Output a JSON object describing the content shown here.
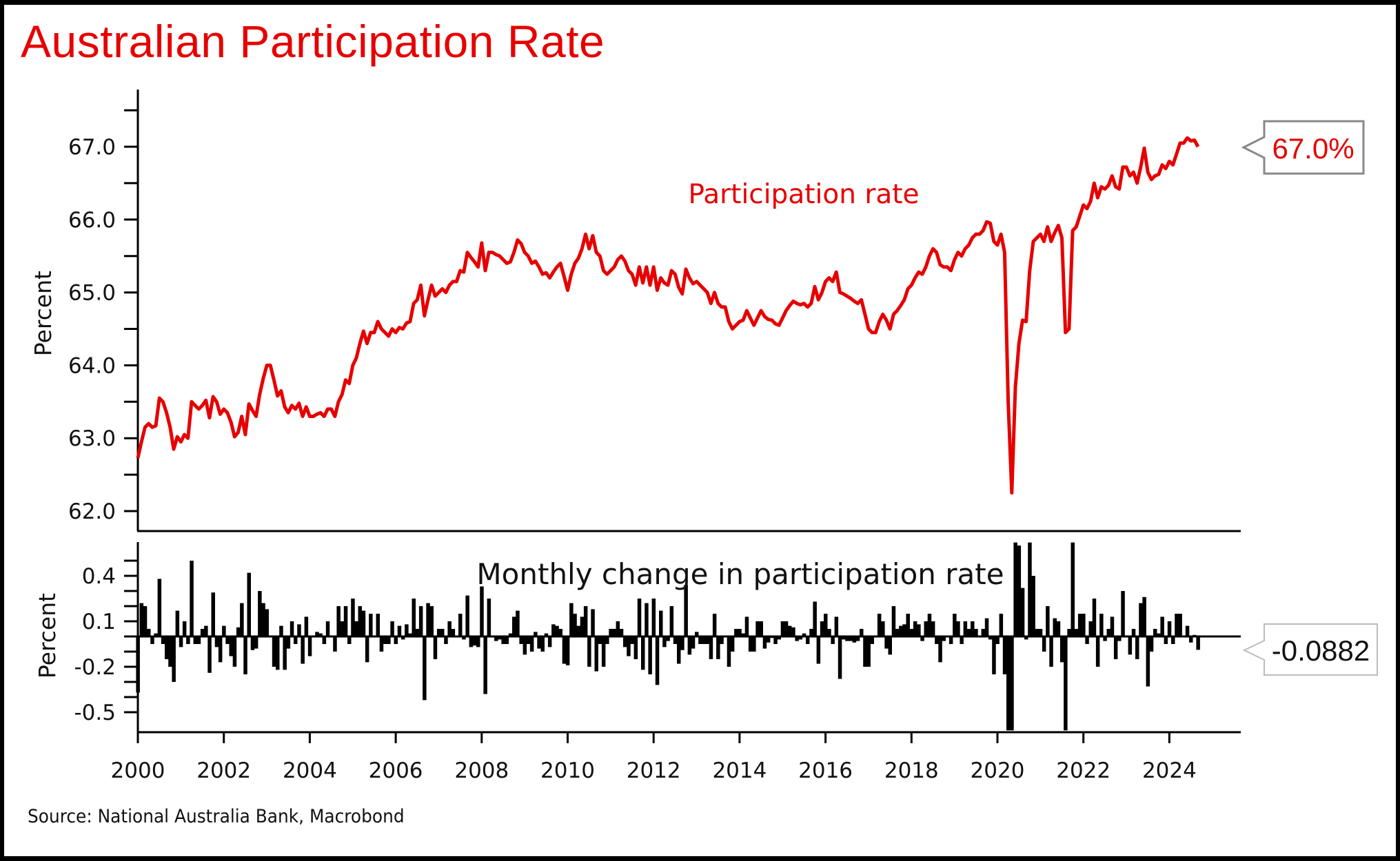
{
  "title": "Australian Participation Rate",
  "source": "Source: National Australia Bank, Macrobond",
  "colors": {
    "title": "#e60000",
    "line": "#e60000",
    "bars": "#000000",
    "callout_border": "#888888"
  },
  "chart_data": [
    {
      "type": "line",
      "title": "Participation rate",
      "ylabel": "Percent",
      "xlabel": "",
      "frequency": "monthly",
      "x_start": "2000-01",
      "ylim": [
        61.8,
        67.8
      ],
      "xlim": [
        2000,
        2025.8
      ],
      "yticks": [
        62.0,
        63.0,
        64.0,
        65.0,
        66.0,
        67.0
      ],
      "ytick_labels": [
        "62.0",
        "63.0",
        "64.0",
        "65.0",
        "66.0",
        "67.0"
      ],
      "yminor_step": 0.5,
      "grid": false,
      "series": [
        {
          "name": "Participation rate",
          "color": "#e60000",
          "values": [
            62.73,
            62.95,
            63.15,
            63.2,
            63.15,
            63.17,
            63.55,
            63.5,
            63.35,
            63.15,
            62.85,
            63.02,
            62.95,
            63.05,
            63.0,
            63.5,
            63.45,
            63.4,
            63.45,
            63.52,
            63.28,
            63.57,
            63.5,
            63.33,
            63.4,
            63.35,
            63.22,
            63.02,
            63.08,
            63.3,
            63.05,
            63.47,
            63.38,
            63.3,
            63.6,
            63.82,
            64.0,
            64.0,
            63.8,
            63.58,
            63.65,
            63.43,
            63.35,
            63.45,
            63.4,
            63.48,
            63.3,
            63.43,
            63.3,
            63.3,
            63.33,
            63.35,
            63.3,
            63.4,
            63.4,
            63.3,
            63.5,
            63.6,
            63.8,
            63.75,
            64.0,
            64.1,
            64.3,
            64.47,
            64.3,
            64.45,
            64.45,
            64.6,
            64.5,
            64.45,
            64.4,
            64.5,
            64.45,
            64.52,
            64.5,
            64.58,
            64.6,
            64.85,
            64.9,
            65.1,
            64.68,
            64.9,
            65.1,
            64.95,
            65.0,
            65.05,
            65.0,
            65.1,
            65.15,
            65.15,
            65.3,
            65.28,
            65.55,
            65.48,
            65.42,
            65.35,
            65.68,
            65.3,
            65.55,
            65.55,
            65.52,
            65.5,
            65.45,
            65.4,
            65.42,
            65.55,
            65.72,
            65.67,
            65.55,
            65.5,
            65.4,
            65.43,
            65.35,
            65.25,
            65.27,
            65.2,
            65.28,
            65.35,
            65.4,
            65.22,
            65.03,
            65.25,
            65.4,
            65.47,
            65.6,
            65.8,
            65.6,
            65.78,
            65.55,
            65.5,
            65.3,
            65.25,
            65.3,
            65.35,
            65.45,
            65.5,
            65.43,
            65.3,
            65.25,
            65.1,
            65.35,
            65.13,
            65.35,
            65.1,
            65.35,
            65.03,
            65.2,
            65.13,
            65.1,
            65.3,
            65.25,
            65.07,
            64.98,
            65.32,
            65.2,
            65.12,
            65.15,
            65.1,
            65.05,
            65.0,
            64.85,
            65.0,
            64.85,
            64.8,
            64.8,
            64.6,
            64.5,
            64.55,
            64.6,
            64.62,
            64.75,
            64.65,
            64.55,
            64.65,
            64.75,
            64.67,
            64.63,
            64.62,
            64.57,
            64.55,
            64.65,
            64.75,
            64.82,
            64.88,
            64.85,
            64.83,
            64.85,
            64.8,
            64.85,
            65.08,
            64.9,
            65.0,
            65.15,
            65.2,
            65.15,
            65.28,
            65.0,
            64.98,
            64.95,
            64.92,
            64.88,
            64.85,
            64.9,
            64.7,
            64.5,
            64.45,
            64.45,
            64.6,
            64.7,
            64.62,
            64.5,
            64.7,
            64.75,
            64.82,
            64.9,
            65.05,
            65.1,
            65.2,
            65.28,
            65.25,
            65.35,
            65.5,
            65.6,
            65.55,
            65.38,
            65.35,
            65.35,
            65.3,
            65.45,
            65.55,
            65.5,
            65.6,
            65.65,
            65.75,
            65.8,
            65.8,
            65.85,
            65.97,
            65.95,
            65.7,
            65.65,
            65.8,
            65.55,
            63.5,
            62.25,
            63.7,
            64.3,
            64.62,
            64.6,
            65.3,
            65.7,
            65.75,
            65.8,
            65.7,
            65.9,
            65.7,
            65.82,
            65.92,
            65.75,
            64.45,
            64.5,
            65.85,
            65.9,
            66.05,
            66.2,
            66.15,
            66.25,
            66.5,
            66.3,
            66.45,
            66.42,
            66.47,
            66.6,
            66.45,
            66.42,
            66.72,
            66.72,
            66.6,
            66.65,
            66.5,
            66.72,
            66.98,
            66.65,
            66.55,
            66.6,
            66.62,
            66.75,
            66.7,
            66.8,
            66.75,
            66.9,
            67.05,
            67.05,
            67.12,
            67.08,
            67.09,
            67.0
          ]
        }
      ],
      "annotation": {
        "text": "Participation rate"
      },
      "last_value_label": "67.0%"
    },
    {
      "type": "bar",
      "title": "Monthly change in participation rate",
      "ylabel": "Percent",
      "xlabel": "",
      "derived_from": "first difference of Participation rate",
      "ylim": [
        -0.62,
        0.62
      ],
      "yticks": [
        -0.5,
        -0.2,
        0.1,
        0.4
      ],
      "ytick_labels": [
        "-0.5",
        "-0.2",
        "0.1",
        "0.4"
      ],
      "yminor_step": 0.1,
      "xticks": [
        2000,
        2002,
        2004,
        2006,
        2008,
        2010,
        2012,
        2014,
        2016,
        2018,
        2020,
        2022,
        2024
      ],
      "xtick_labels": [
        "2000",
        "2002",
        "2004",
        "2006",
        "2008",
        "2010",
        "2012",
        "2014",
        "2016",
        "2018",
        "2020",
        "2022",
        "2024"
      ],
      "grid": false,
      "last_value": -0.0882,
      "last_value_label": "-0.0882",
      "annotation": {
        "text": "Monthly change in participation rate"
      }
    }
  ]
}
